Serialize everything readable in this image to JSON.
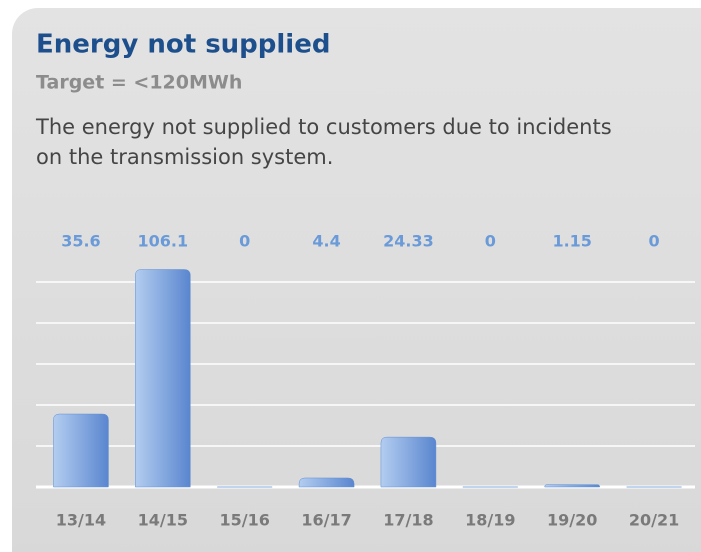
{
  "chart_data": {
    "type": "bar",
    "title": "Energy not supplied",
    "subtitle": "Target = <120MWh",
    "description": [
      "The energy not supplied to customers due to incidents",
      "on the transmission system."
    ],
    "categories": [
      "13/14",
      "14/15",
      "15/16",
      "16/17",
      "17/18",
      "18/19",
      "19/20",
      "20/21"
    ],
    "values": [
      35.6,
      106.1,
      0,
      4.4,
      24.33,
      0,
      1.15,
      0
    ],
    "color": "#5f8fd3",
    "ylim": [
      0,
      110
    ],
    "yticks": [
      0,
      20,
      40,
      60,
      80,
      100
    ],
    "grid": true
  }
}
